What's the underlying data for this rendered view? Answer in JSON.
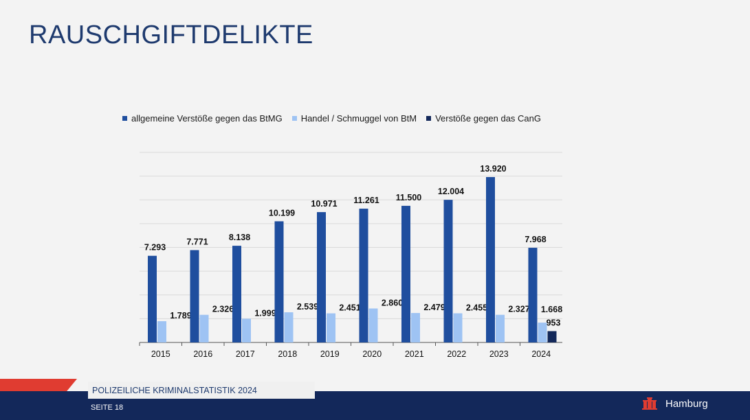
{
  "title": "RAUSCHGIFTDELIKTE",
  "colors": {
    "series1": "#1f4e9e",
    "series2": "#9ec3f3",
    "series3": "#13285a",
    "accent_red": "#e03c31",
    "navy": "#13285a"
  },
  "chart_data": {
    "type": "bar",
    "title": "",
    "categories": [
      "2015",
      "2016",
      "2017",
      "2018",
      "2019",
      "2020",
      "2021",
      "2022",
      "2023",
      "2024"
    ],
    "series": [
      {
        "name": "allgemeine Verstöße gegen das BtMG",
        "values": [
          7293,
          7771,
          8138,
          10199,
          10971,
          11261,
          11500,
          12004,
          13920,
          7968
        ],
        "labels": [
          "7.293",
          "7.771",
          "8.138",
          "10.199",
          "10.971",
          "11.261",
          "11.500",
          "12.004",
          "13.920",
          "7.968"
        ]
      },
      {
        "name": "Handel / Schmuggel von BtM",
        "values": [
          1789,
          2326,
          1999,
          2539,
          2451,
          2860,
          2479,
          2455,
          2327,
          1668
        ],
        "labels": [
          "1.789",
          "2.326",
          "1.999",
          "2.539",
          "2.451",
          "2.860",
          "2.479",
          "2.455",
          "2.327",
          "1.668"
        ]
      },
      {
        "name": "Verstöße gegen das CanG",
        "values": [
          null,
          null,
          null,
          null,
          null,
          null,
          null,
          null,
          null,
          953
        ],
        "labels": [
          "",
          "",
          "",
          "",
          "",
          "",
          "",
          "",
          "",
          "953"
        ]
      }
    ],
    "xlabel": "",
    "ylabel": "",
    "ylim": [
      0,
      16000
    ],
    "grid": true,
    "legend": "top"
  },
  "footer": {
    "label": "POLIZEILICHE KRIMINALSTATISTIK  2024",
    "page": "SEITE  18",
    "brand": "Hamburg",
    "logo_icon": "hamburg-castle-icon"
  }
}
